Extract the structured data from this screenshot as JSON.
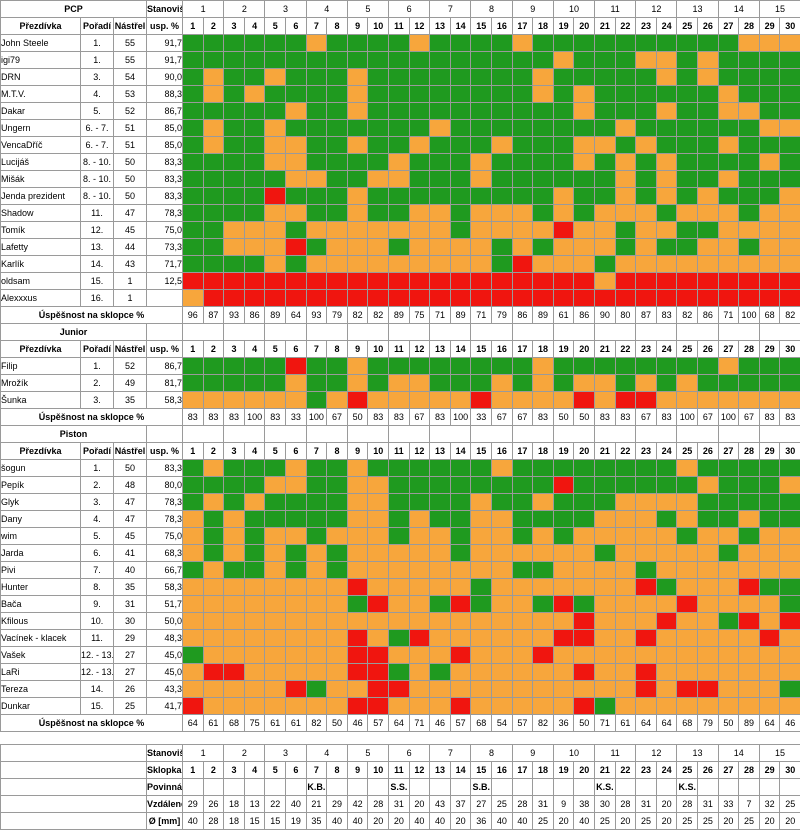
{
  "labels": {
    "prezdivka": "Přezdívka",
    "poradi": "Pořadí",
    "nastrel": "Nástřel",
    "usp": "usp. %",
    "stanoviste": "Stanoviště",
    "uspesnost": "Úspěšnost na sklopce %",
    "sklopka": "Sklopka č.",
    "povinna": "Povinná poloha",
    "vzdalenost": "Vzdálenost [m]",
    "prumer": "Ø [mm]"
  },
  "stanoviste_nums": [
    "1",
    "2",
    "3",
    "4",
    "5",
    "6",
    "7",
    "8",
    "9",
    "10",
    "11",
    "12",
    "13",
    "14",
    "15"
  ],
  "sklopka_nums": [
    "1",
    "2",
    "3",
    "4",
    "5",
    "6",
    "7",
    "8",
    "9",
    "10",
    "11",
    "12",
    "13",
    "14",
    "15",
    "16",
    "17",
    "18",
    "19",
    "20",
    "21",
    "22",
    "23",
    "24",
    "25",
    "26",
    "27",
    "28",
    "29",
    "30"
  ],
  "colors": {
    "green": "#1f9a1f",
    "orange": "#f7a63c",
    "red": "#f0150f"
  },
  "sections": [
    {
      "title": "PCP",
      "players": [
        {
          "name": "John Steele",
          "rank": "1.",
          "shots": "55",
          "pct": "91,7",
          "cells": "GGGGGGOGGGGOGGGGOGGGGGGGGGGOOO"
        },
        {
          "name": "igi79",
          "rank": "1.",
          "shots": "55",
          "pct": "91,7",
          "cells": "GGGGGGGGGGGGGGGGGGOGGGOOGOGGGG"
        },
        {
          "name": "DRN",
          "rank": "3.",
          "shots": "54",
          "pct": "90,0",
          "cells": "GOGGOGGGOGGGGGGGGOGGGGGOGOGGGG"
        },
        {
          "name": "M.T.V.",
          "rank": "4.",
          "shots": "53",
          "pct": "88,3",
          "cells": "GOGOGGGGOGGGGGGGGOGOGGGGGGOGGG"
        },
        {
          "name": "Dakar",
          "rank": "5.",
          "shots": "52",
          "pct": "86,7",
          "cells": "GGGGGOGGOGGGGGGGGGGOGGGOGGOOGG"
        },
        {
          "name": "Ungern",
          "rank": "6. - 7.",
          "shots": "51",
          "pct": "85,0",
          "cells": "GOGGOGGGGGGGOGGGGGGGGOGGGGGGOO"
        },
        {
          "name": "VencaDříč",
          "rank": "6. - 7.",
          "shots": "51",
          "pct": "85,0",
          "cells": "GOGGOOGGOGGOGGGOGGGOOGOGGGOGGG"
        },
        {
          "name": "Lucijáš",
          "rank": "8. - 10.",
          "shots": "50",
          "pct": "83,3",
          "cells": "GGGGOOGGGGOGGGOGGGGOGOGOGGGGOG"
        },
        {
          "name": "Mišák",
          "rank": "8. - 10.",
          "shots": "50",
          "pct": "83,3",
          "cells": "GGGGGOOGGOOGGGOGGGGGGOGOGGOGGG"
        },
        {
          "name": "Jenda prezident",
          "rank": "8. - 10.",
          "shots": "50",
          "pct": "83,3",
          "cells": "GGGGRGGGOGGGGGGGGGOGGOGOGOGGGO"
        },
        {
          "name": "Shadow",
          "rank": "11.",
          "shots": "47",
          "pct": "78,3",
          "cells": "GGGGOOGGOGGOOGOOOGOGOOOGOOOGOO"
        },
        {
          "name": "Tomík",
          "rank": "12.",
          "shots": "45",
          "pct": "75,0",
          "cells": "GGOOOGOOOOOOOGOOOOROOGOOGGOOOO"
        },
        {
          "name": "Lafetty",
          "rank": "13.",
          "shots": "44",
          "pct": "73,3",
          "cells": "GGOOORGOOOGOOOOGOGOOOGOGGOOGOO"
        },
        {
          "name": "Karlík",
          "rank": "14.",
          "shots": "43",
          "pct": "71,7",
          "cells": "GGGGOGOOOOOOOOOGROOOGOOOOOOOOO"
        },
        {
          "name": "oldsam",
          "rank": "15.",
          "shots": "1",
          "pct": "12,5",
          "cells": "RRRRRRRRRRRRRRRRRRRRORRRRRRRRR"
        },
        {
          "name": "Alexxxus",
          "rank": "16.",
          "shots": "1",
          "pct": "",
          "cells": "ORRRRRRRRRRRRRRRRRRRRRRRRRRRRR"
        }
      ],
      "success": [
        "96",
        "87",
        "93",
        "86",
        "89",
        "64",
        "93",
        "79",
        "82",
        "82",
        "89",
        "75",
        "71",
        "89",
        "71",
        "79",
        "86",
        "89",
        "61",
        "86",
        "90",
        "80",
        "87",
        "83",
        "82",
        "86",
        "71",
        "100",
        "68",
        "82"
      ]
    },
    {
      "title": "Junior",
      "players": [
        {
          "name": "Filip",
          "rank": "1.",
          "shots": "52",
          "pct": "86,7",
          "cells": "GGGGGRGGOGGGGGGGGOGGGGGGGGOGGG"
        },
        {
          "name": "Mrožík",
          "rank": "2.",
          "shots": "49",
          "pct": "81,7",
          "cells": "GGGGGOGGOGOOGGGOGOGOOGOGOGGGGG"
        },
        {
          "name": "Šunka",
          "rank": "3.",
          "shots": "35",
          "pct": "58,3",
          "cells": "OOOOOOGOROOOOOROOOORORROOOOOOOO"
        }
      ],
      "success": [
        "83",
        "83",
        "83",
        "100",
        "83",
        "33",
        "100",
        "67",
        "50",
        "83",
        "83",
        "67",
        "83",
        "100",
        "33",
        "67",
        "67",
        "83",
        "50",
        "50",
        "83",
        "83",
        "67",
        "83",
        "100",
        "67",
        "100",
        "67",
        "83",
        "83"
      ]
    },
    {
      "title": "Piston",
      "players": [
        {
          "name": "šogun",
          "rank": "1.",
          "shots": "50",
          "pct": "83,3",
          "cells": "GOGGGOGGOGGGGGGOGGGGGGGGOGGGGG"
        },
        {
          "name": "Pepík",
          "rank": "2.",
          "shots": "48",
          "pct": "80,0",
          "cells": "GGGGOOGGOOGGGGGGGGRGGGGGGOGGGO"
        },
        {
          "name": "Glyk",
          "rank": "3.",
          "shots": "47",
          "pct": "78,3",
          "cells": "GOGOGGGGOOGGGGOGGOGGGOOOOGGGGG"
        },
        {
          "name": "Dany",
          "rank": "4.",
          "shots": "47",
          "pct": "78,3",
          "cells": "OGOGGGGGOOGOGGOOGGGGOOOGOGGOGG"
        },
        {
          "name": "wim",
          "rank": "5.",
          "shots": "45",
          "pct": "75,0",
          "cells": "OGOGOOGOOOGOOGOOGOGOOOOOGOOGOO"
        },
        {
          "name": "Jarda",
          "rank": "6.",
          "shots": "41",
          "pct": "68,3",
          "cells": "OGOGOGOGOOOOOGOOOOOOGOOOOOGOOO"
        },
        {
          "name": "Pivi",
          "rank": "7.",
          "shots": "40",
          "pct": "66,7",
          "cells": "GOGGOGOGOOOOOOOOGGOOOOGOOOOOOO"
        },
        {
          "name": "Hunter",
          "rank": "8.",
          "shots": "35",
          "pct": "58,3",
          "cells": "OOOOOOOOROOOOOGOOOOOOORGOOORGG"
        },
        {
          "name": "Bača",
          "rank": "9.",
          "shots": "31",
          "pct": "51,7",
          "cells": "OOOOOOOOGROOGRGOOGRGOOOOROOOOG"
        },
        {
          "name": "Kfilous",
          "rank": "10.",
          "shots": "30",
          "pct": "50,0",
          "cells": "OOOOOOOOOOOOOOOOOOOROOOROOGRORO"
        },
        {
          "name": "Vacínek - klacek",
          "rank": "11.",
          "shots": "29",
          "pct": "48,3",
          "cells": "OOOOOOOOROGROOOOOORROOROOOOOROO"
        },
        {
          "name": "Vašek",
          "rank": "12. - 13.",
          "shots": "27",
          "pct": "45,0",
          "cells": "GOOOOOOORROOOROOOROOOOOOOOOOOOO"
        },
        {
          "name": "LaRi",
          "rank": "12. - 13.",
          "shots": "27",
          "pct": "45,0",
          "cells": "ORROOOOORRGOGOOOOOOROOROOOOOOOO"
        },
        {
          "name": "Tereza",
          "rank": "14.",
          "shots": "26",
          "pct": "43,3",
          "cells": "OOOOORGOORROOOOOOOOOOORORROOOGRR"
        },
        {
          "name": "Dunkar",
          "rank": "15.",
          "shots": "25",
          "pct": "41,7",
          "cells": "ROOOOOOORROOOROOOOORGOOOOOOOOOO"
        }
      ],
      "success": [
        "64",
        "61",
        "68",
        "75",
        "61",
        "61",
        "82",
        "50",
        "46",
        "57",
        "64",
        "71",
        "46",
        "57",
        "68",
        "54",
        "57",
        "82",
        "36",
        "50",
        "71",
        "61",
        "64",
        "64",
        "68",
        "79",
        "50",
        "89",
        "64",
        "46"
      ]
    }
  ],
  "footer": {
    "povinna": [
      "",
      "",
      "",
      "",
      "",
      "",
      "K.B.",
      "",
      "",
      "",
      "S.S.",
      "",
      "",
      "",
      "S.B.",
      "",
      "",
      "",
      "",
      "",
      "K.S.",
      "",
      "",
      "",
      "K.S.",
      "",
      "",
      "",
      "",
      ""
    ],
    "vzdalenost": [
      "29",
      "26",
      "18",
      "13",
      "22",
      "40",
      "21",
      "29",
      "42",
      "28",
      "31",
      "20",
      "43",
      "37",
      "27",
      "25",
      "28",
      "31",
      "9",
      "38",
      "30",
      "28",
      "31",
      "20",
      "28",
      "31",
      "33",
      "7",
      "32",
      "25"
    ],
    "prumer": [
      "40",
      "28",
      "18",
      "15",
      "15",
      "19",
      "35",
      "40",
      "40",
      "20",
      "20",
      "40",
      "40",
      "20",
      "36",
      "40",
      "40",
      "25",
      "20",
      "40",
      "25",
      "20",
      "25",
      "20",
      "25",
      "25",
      "20",
      "25",
      "20",
      "20"
    ]
  }
}
